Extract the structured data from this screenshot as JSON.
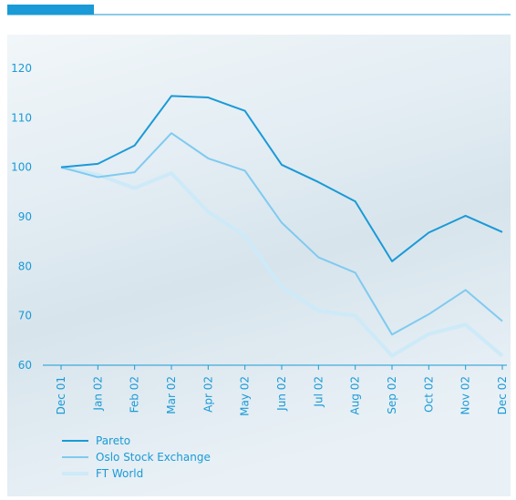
{
  "chart_data": {
    "type": "line",
    "categories": [
      "Dec 01",
      "Jan 02",
      "Feb 02",
      "Mar 02",
      "Apr 02",
      "May 02",
      "Jun 02",
      "Jul 02",
      "Aug 02",
      "Sep 02",
      "Oct 02",
      "Nov 02",
      "Dec 02"
    ],
    "series": [
      {
        "name": "Pareto",
        "color": "#1a9ad6",
        "values": [
          100,
          100.7,
          104.4,
          114.4,
          114.1,
          111.4,
          100.5,
          97,
          93.1,
          81,
          86.8,
          90.2,
          86.9
        ]
      },
      {
        "name": "Oslo Stock Exchange",
        "color": "#7fcaf0",
        "values": [
          100,
          98,
          99,
          106.9,
          101.8,
          99.3,
          88.8,
          81.8,
          78.7,
          66.2,
          70.3,
          75.2,
          68.9
        ]
      },
      {
        "name": "FT World",
        "color": "#cdeaf8",
        "values": [
          100,
          98.5,
          95.8,
          98.8,
          91,
          86.1,
          75.8,
          71,
          70,
          61.9,
          66.3,
          68.2,
          61.9
        ]
      }
    ],
    "ylim": [
      60,
      120
    ],
    "yticks": [
      60,
      70,
      80,
      90,
      100,
      110,
      120
    ],
    "grid": false,
    "legend": "bottom-left"
  }
}
